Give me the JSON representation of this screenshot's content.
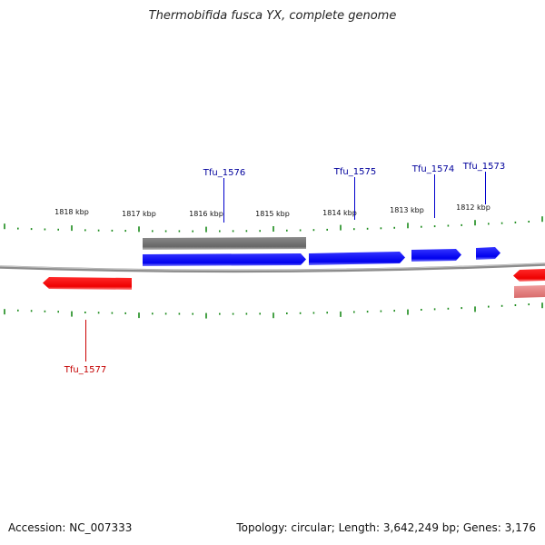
{
  "title": "Thermobifida fusca YX, complete genome",
  "footer": {
    "accession": "Accession: NC_007333",
    "topology": "Topology: circular; Length: 3,642,249 bp; Genes: 3,176"
  },
  "colors": {
    "plus_strand": "#0000ee",
    "minus_strand": "#ee0000",
    "gray_feature": "#6e6e6e",
    "pink_feature": "#e68080",
    "tick": "#1a8a1a",
    "backbone": "#808080",
    "label_blue": "#00009c",
    "label_red": "#c40000"
  },
  "scale_labels": [
    {
      "text": "1818 kbp",
      "kbp": 1818
    },
    {
      "text": "1817 kbp",
      "kbp": 1817
    },
    {
      "text": "1816 kbp",
      "kbp": 1816
    },
    {
      "text": "1815 kbp",
      "kbp": 1815
    },
    {
      "text": "1814 kbp",
      "kbp": 1814
    },
    {
      "text": "1813 kbp",
      "kbp": 1813
    },
    {
      "text": "1812 kbp",
      "kbp": 1812
    }
  ],
  "genes": [
    {
      "name": "Tfu_1576",
      "strand": "+"
    },
    {
      "name": "Tfu_1575",
      "strand": "+"
    },
    {
      "name": "Tfu_1574",
      "strand": "+"
    },
    {
      "name": "Tfu_1573",
      "strand": "+"
    },
    {
      "name": "Tfu_1577",
      "strand": "-"
    }
  ]
}
